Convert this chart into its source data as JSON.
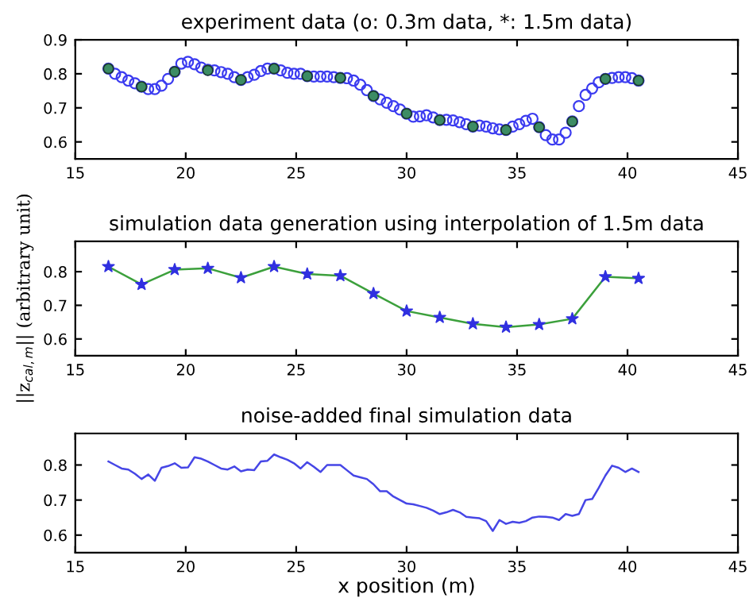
{
  "chart_data": [
    {
      "type": "scatter",
      "title": "experiment data (o: 0.3m data, *: 1.5m data)",
      "xlim": [
        15,
        45
      ],
      "xticks": [
        15,
        20,
        25,
        30,
        35,
        40,
        45
      ],
      "ylim": [
        0.55,
        0.9
      ],
      "yticks": [
        0.6,
        0.7,
        0.8,
        0.9
      ],
      "grid": false,
      "series": [
        {
          "marker": "circle",
          "color": "#3b3bf0",
          "x": [
            16.5,
            16.8,
            17.1,
            17.4,
            17.7,
            18.0,
            18.3,
            18.6,
            18.9,
            19.2,
            19.5,
            19.8,
            20.1,
            20.4,
            20.7,
            21.0,
            21.3,
            21.6,
            21.9,
            22.2,
            22.5,
            22.8,
            23.1,
            23.4,
            23.7,
            24.0,
            24.3,
            24.6,
            24.9,
            25.2,
            25.5,
            25.8,
            26.1,
            26.4,
            26.7,
            27.0,
            27.3,
            27.6,
            27.9,
            28.2,
            28.5,
            28.8,
            29.1,
            29.4,
            29.7,
            30.0,
            30.3,
            30.6,
            30.9,
            31.2,
            31.5,
            31.8,
            32.1,
            32.4,
            32.7,
            33.0,
            33.3,
            33.6,
            33.9,
            34.2,
            34.5,
            34.8,
            35.1,
            35.4,
            35.7,
            36.0,
            36.3,
            36.6,
            36.9,
            37.2,
            37.5,
            37.8,
            38.1,
            38.4,
            38.7,
            39.0,
            39.3,
            39.6,
            39.9,
            40.2,
            40.5
          ],
          "values": [
            0.815,
            0.8,
            0.79,
            0.78,
            0.772,
            0.762,
            0.755,
            0.755,
            0.765,
            0.785,
            0.806,
            0.83,
            0.835,
            0.828,
            0.818,
            0.812,
            0.81,
            0.805,
            0.8,
            0.79,
            0.782,
            0.79,
            0.797,
            0.808,
            0.815,
            0.815,
            0.81,
            0.803,
            0.8,
            0.8,
            0.793,
            0.792,
            0.792,
            0.792,
            0.79,
            0.788,
            0.787,
            0.78,
            0.768,
            0.752,
            0.735,
            0.725,
            0.715,
            0.705,
            0.695,
            0.683,
            0.674,
            0.675,
            0.678,
            0.672,
            0.664,
            0.665,
            0.663,
            0.658,
            0.652,
            0.645,
            0.648,
            0.645,
            0.64,
            0.637,
            0.635,
            0.645,
            0.652,
            0.662,
            0.668,
            0.643,
            0.62,
            0.607,
            0.607,
            0.627,
            0.66,
            0.705,
            0.738,
            0.757,
            0.775,
            0.785,
            0.788,
            0.79,
            0.79,
            0.787,
            0.78
          ]
        },
        {
          "marker": "circle",
          "color": "#3c8c64",
          "x": [
            16.5,
            18,
            19.5,
            21,
            22.5,
            24,
            25.5,
            27,
            28.5,
            30,
            31.5,
            33,
            34.5,
            36,
            37.5,
            39,
            40.5
          ],
          "values": [
            0.815,
            0.762,
            0.806,
            0.81,
            0.782,
            0.815,
            0.793,
            0.788,
            0.735,
            0.683,
            0.664,
            0.645,
            0.635,
            0.643,
            0.66,
            0.785,
            0.78
          ]
        }
      ]
    },
    {
      "type": "line",
      "title": "simulation data generation using interpolation of 1.5m data",
      "ylabel": "||z$_{cal,m}$|| (arbitrary unit)",
      "xlim": [
        15,
        45
      ],
      "xticks": [
        15,
        20,
        25,
        30,
        35,
        40,
        45
      ],
      "ylim": [
        0.55,
        0.89
      ],
      "yticks": [
        0.6,
        0.7,
        0.8
      ],
      "grid": false,
      "x": [
        16.5,
        18,
        19.5,
        21,
        22.5,
        24,
        25.5,
        27,
        28.5,
        30,
        31.5,
        33,
        34.5,
        36,
        37.5,
        39,
        40.5
      ],
      "series": [
        {
          "marker": "none",
          "line_style": "solid",
          "color": "#3ca03c",
          "values": [
            0.815,
            0.762,
            0.806,
            0.81,
            0.782,
            0.815,
            0.793,
            0.788,
            0.735,
            0.683,
            0.664,
            0.645,
            0.635,
            0.643,
            0.66,
            0.785,
            0.78
          ]
        },
        {
          "type": "scatter",
          "marker": "star",
          "color": "#3030e0",
          "values": [
            0.815,
            0.762,
            0.806,
            0.81,
            0.782,
            0.815,
            0.793,
            0.788,
            0.735,
            0.683,
            0.664,
            0.645,
            0.635,
            0.643,
            0.66,
            0.785,
            0.78
          ]
        }
      ]
    },
    {
      "type": "line",
      "title": "noise-added final simulation data",
      "xlabel": "x position (m)",
      "xlim": [
        15,
        45
      ],
      "xticks": [
        15,
        20,
        25,
        30,
        35,
        40,
        45
      ],
      "ylim": [
        0.55,
        0.89
      ],
      "yticks": [
        0.6,
        0.7,
        0.8
      ],
      "grid": false,
      "x": [
        16.5,
        16.8,
        17.1,
        17.4,
        17.7,
        18.0,
        18.3,
        18.6,
        18.9,
        19.2,
        19.5,
        19.8,
        20.1,
        20.4,
        20.7,
        21.0,
        21.3,
        21.6,
        21.9,
        22.2,
        22.5,
        22.8,
        23.1,
        23.4,
        23.7,
        24.0,
        24.3,
        24.6,
        24.9,
        25.2,
        25.5,
        25.8,
        26.1,
        26.4,
        26.7,
        27.0,
        27.3,
        27.6,
        27.9,
        28.2,
        28.5,
        28.8,
        29.1,
        29.4,
        29.7,
        30.0,
        30.3,
        30.6,
        30.9,
        31.2,
        31.5,
        31.8,
        32.1,
        32.4,
        32.7,
        33.0,
        33.3,
        33.6,
        33.9,
        34.2,
        34.5,
        34.8,
        35.1,
        35.4,
        35.7,
        36.0,
        36.3,
        36.6,
        36.9,
        37.2,
        37.5,
        37.8,
        38.1,
        38.4,
        38.7,
        39.0,
        39.3,
        39.6,
        39.9,
        40.2,
        40.5
      ],
      "series": [
        {
          "marker": "none",
          "line_style": "solid",
          "color": "#4646e6",
          "values": [
            0.81,
            0.8,
            0.79,
            0.787,
            0.775,
            0.76,
            0.773,
            0.755,
            0.792,
            0.797,
            0.805,
            0.792,
            0.793,
            0.822,
            0.818,
            0.81,
            0.8,
            0.79,
            0.787,
            0.796,
            0.782,
            0.787,
            0.785,
            0.81,
            0.812,
            0.83,
            0.822,
            0.815,
            0.805,
            0.79,
            0.808,
            0.795,
            0.78,
            0.8,
            0.8,
            0.8,
            0.785,
            0.77,
            0.765,
            0.76,
            0.745,
            0.725,
            0.725,
            0.71,
            0.7,
            0.69,
            0.688,
            0.683,
            0.678,
            0.67,
            0.66,
            0.665,
            0.672,
            0.665,
            0.652,
            0.65,
            0.648,
            0.64,
            0.612,
            0.643,
            0.632,
            0.638,
            0.635,
            0.64,
            0.65,
            0.653,
            0.652,
            0.65,
            0.643,
            0.66,
            0.655,
            0.66,
            0.7,
            0.703,
            0.735,
            0.77,
            0.798,
            0.792,
            0.78,
            0.79,
            0.78
          ]
        }
      ]
    }
  ]
}
